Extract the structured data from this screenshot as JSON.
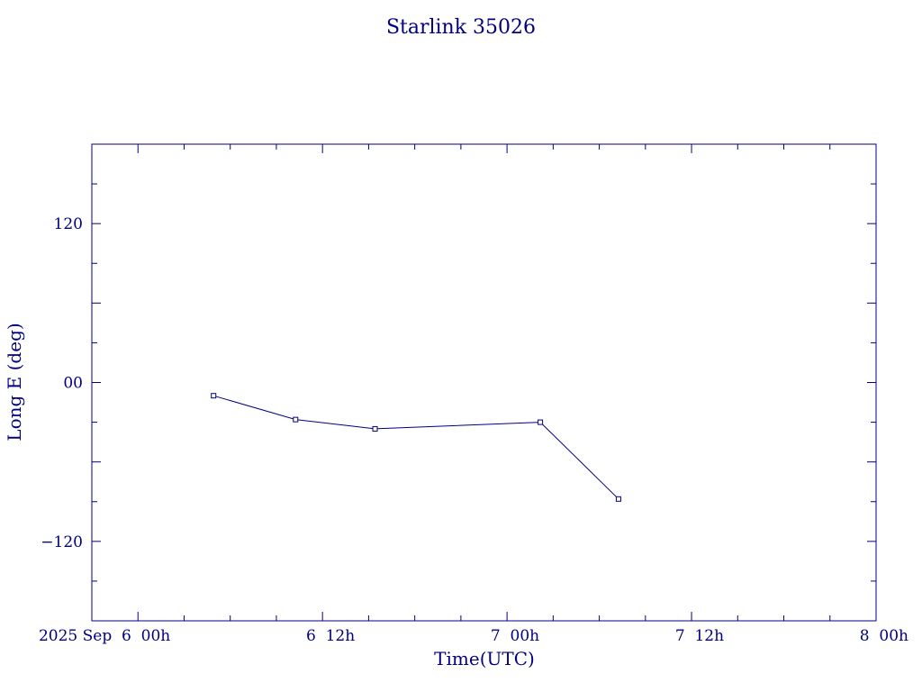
{
  "chart_data": {
    "type": "line",
    "title": "Starlink 35026",
    "xlabel": "Time(UTC)",
    "ylabel": "Long E (deg)",
    "color": "#000080",
    "x_tick_labels": [
      "2025 Sep  6  00h",
      "6  12h",
      "7  00h",
      "7  12h",
      "8  00h"
    ],
    "y_tick_labels": [
      "120",
      "00",
      "−120"
    ],
    "y_tick_values": [
      120,
      0,
      -120
    ],
    "ylim": [
      -180,
      180
    ],
    "xlim": [
      "2025-09-05T21:00",
      "2025-09-08T00:00"
    ],
    "grid": false,
    "series": [
      {
        "x": [
          "2025-09-06T04:55",
          "2025-09-06T10:15",
          "2025-09-06T15:25",
          "2025-09-07T02:10",
          "2025-09-07T07:15"
        ],
        "y": [
          -10,
          -28,
          -35,
          -30,
          -88
        ]
      }
    ]
  }
}
